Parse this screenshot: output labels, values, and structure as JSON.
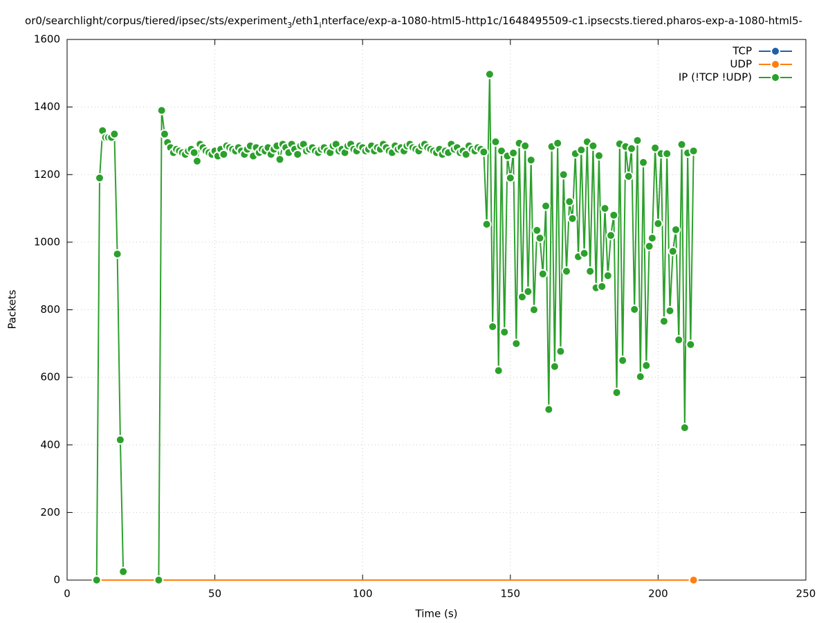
{
  "chart_data": {
    "type": "line",
    "title": [
      "or0/searchlight/corpus/tiered/ipsec/sts/experiment",
      "3",
      "/eth1",
      "i",
      "nterface/exp-a-1080-html5-http1c/1648495509-c1.ipsecsts.tiered.pharos-exp-a-1080-html5-"
    ],
    "x_label": "Time (s)",
    "y_label": "Packets",
    "xlim": [
      0,
      250
    ],
    "xticks": [
      0,
      50,
      100,
      150,
      200,
      250
    ],
    "ylim": [
      0,
      1600
    ],
    "yticks": [
      0,
      200,
      400,
      600,
      800,
      1000,
      1200,
      1400,
      1600
    ],
    "grid": true,
    "legend": "top-right",
    "series": [
      {
        "name": "TCP",
        "color": "#1f5fa8",
        "x": [],
        "values": []
      },
      {
        "name": "UDP",
        "color": "#ff7f0e",
        "x": [
          10,
          212
        ],
        "values": [
          0,
          0
        ]
      },
      {
        "name": "IP (!TCP  !UDP)",
        "color": "#2ca02c",
        "x": [
          10,
          11,
          12,
          13,
          14,
          15,
          16,
          17,
          18,
          19,
          25,
          31,
          32,
          33,
          34,
          35,
          36,
          37,
          38,
          39,
          40,
          41,
          42,
          43,
          44,
          45,
          46,
          47,
          48,
          49,
          50,
          51,
          52,
          53,
          54,
          55,
          56,
          57,
          58,
          59,
          60,
          61,
          62,
          63,
          64,
          65,
          66,
          67,
          68,
          69,
          70,
          71,
          72,
          73,
          74,
          75,
          76,
          77,
          78,
          79,
          80,
          81,
          82,
          83,
          84,
          85,
          86,
          87,
          88,
          89,
          90,
          91,
          92,
          93,
          94,
          95,
          96,
          97,
          98,
          99,
          100,
          101,
          102,
          103,
          104,
          105,
          106,
          107,
          108,
          109,
          110,
          111,
          112,
          113,
          114,
          115,
          116,
          117,
          118,
          119,
          120,
          121,
          122,
          123,
          124,
          125,
          126,
          127,
          128,
          129,
          130,
          131,
          132,
          133,
          134,
          135,
          136,
          137,
          138,
          139,
          140,
          141,
          142,
          143,
          144,
          145,
          146,
          147,
          148,
          149,
          150,
          151,
          152,
          153,
          154,
          155,
          156,
          157,
          158,
          159,
          160,
          161,
          162,
          163,
          164,
          165,
          166,
          167,
          168,
          169,
          170,
          171,
          172,
          173,
          174,
          175,
          176,
          177,
          178,
          179,
          180,
          181,
          182,
          183,
          184,
          185,
          186,
          187,
          188,
          189,
          190,
          191,
          192,
          193,
          194,
          195,
          196,
          197,
          198,
          199,
          200,
          201,
          202,
          203,
          204,
          205,
          206,
          207,
          208,
          209,
          210,
          211,
          212
        ],
        "values": [
          0,
          1190,
          1330,
          1310,
          1310,
          1310,
          1320,
          965,
          415,
          25,
          null,
          0,
          1390,
          1320,
          1295,
          1280,
          1265,
          1275,
          1270,
          1265,
          1260,
          1270,
          1275,
          1265,
          1240,
          1290,
          1280,
          1270,
          1265,
          1260,
          1270,
          1255,
          1275,
          1260,
          1285,
          1280,
          1275,
          1270,
          1280,
          1270,
          1260,
          1275,
          1285,
          1255,
          1280,
          1265,
          1275,
          1270,
          1280,
          1260,
          1275,
          1285,
          1245,
          1290,
          1280,
          1265,
          1290,
          1275,
          1260,
          1285,
          1290,
          1270,
          1275,
          1280,
          1270,
          1265,
          1275,
          1280,
          1270,
          1265,
          1285,
          1290,
          1270,
          1275,
          1265,
          1285,
          1290,
          1275,
          1270,
          1285,
          1280,
          1270,
          1275,
          1285,
          1270,
          1280,
          1275,
          1290,
          1280,
          1270,
          1265,
          1285,
          1275,
          1280,
          1270,
          1285,
          1290,
          1280,
          1275,
          1270,
          1285,
          1290,
          1280,
          1275,
          1270,
          1265,
          1275,
          1260,
          1270,
          1265,
          1290,
          1275,
          1280,
          1265,
          1270,
          1260,
          1285,
          1275,
          1270,
          1280,
          1275,
          1267,
          1053,
          1497,
          750,
          1297,
          620,
          1270,
          734,
          1255,
          1190,
          1264,
          700,
          1293,
          838,
          1285,
          854,
          1243,
          800,
          1035,
          1012,
          906,
          1107,
          505,
          1283,
          632,
          1293,
          677,
          1200,
          914,
          1120,
          1070,
          1262,
          957,
          1273,
          967,
          1297,
          914,
          1285,
          865,
          1256,
          869,
          1100,
          901,
          1020,
          1080,
          555,
          1291,
          650,
          1283,
          1195,
          1277,
          801,
          1301,
          602,
          1236,
          635,
          988,
          1012,
          1279,
          1055,
          1262,
          766,
          1262,
          797,
          973,
          1037,
          711,
          1289,
          451,
          1264,
          697,
          1270
        ]
      }
    ]
  }
}
